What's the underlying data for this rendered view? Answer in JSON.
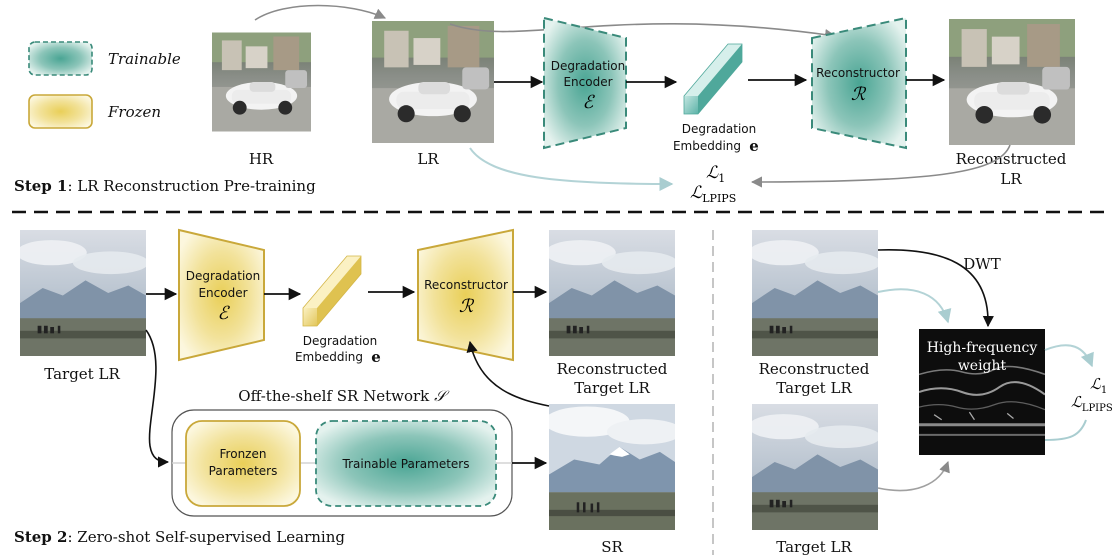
{
  "legend": {
    "trainable_label": "Trainable",
    "frozen_label": "Frozen"
  },
  "step1": {
    "title_bold": "Step 1",
    "title_rest": ": LR Reconstruction Pre-training",
    "hr_label": "HR",
    "lr_label": "LR",
    "encoder_line1": "Degradation",
    "encoder_line2": "Encoder",
    "encoder_symbol": "ℰ",
    "embedding_line1": "Degradation",
    "embedding_line2": "Embedding",
    "embedding_symbol": "e",
    "reconstructor_label": "Reconstructor",
    "reconstructor_symbol": "ℛ",
    "recon_line1": "Reconstructed",
    "recon_line2": "LR",
    "loss_l1": "ℒ",
    "loss_l1_sub": "1",
    "loss_lpips": "ℒ",
    "loss_lpips_sub": "LPIPS"
  },
  "step2": {
    "title_bold": "Step 2",
    "title_rest": ": Zero-shot Self-supervised Learning",
    "target_lr_label": "Target LR",
    "encoder_line1": "Degradation",
    "encoder_line2": "Encoder",
    "encoder_symbol": "ℰ",
    "embedding_line1": "Degradation",
    "embedding_line2": "Embedding",
    "embedding_symbol": "e",
    "reconstructor_label": "Reconstructor",
    "reconstructor_symbol": "ℛ",
    "recon_line1": "Reconstructed",
    "recon_line2": "Target LR",
    "sr_network_label": "Off-the-shelf SR Network",
    "sr_network_symbol": "𝒮",
    "frozen_params_line1": "Fronzen",
    "frozen_params_line2": "Parameters",
    "trainable_params": "Trainable Parameters",
    "sr_label": "SR"
  },
  "right_panel": {
    "dwt_label": "DWT",
    "recon_line1": "Reconstructed",
    "recon_line2": "Target LR",
    "target_lr_label": "Target LR",
    "hf_line1": "High-frequency",
    "hf_line2": "weight",
    "loss_l1": "ℒ",
    "loss_l1_sub": "1",
    "loss_lpips": "ℒ",
    "loss_lpips_sub": "LPIPS"
  },
  "colors": {
    "trainable_fill": "#3f9c8a",
    "trainable_stroke": "#3a8a7a",
    "frozen_fill": "#e8cf58",
    "frozen_stroke": "#c9a83a",
    "arrow_black": "#111111",
    "arrow_gray": "#8a8a8a",
    "arrow_lightblue": "#b3d3d6"
  }
}
